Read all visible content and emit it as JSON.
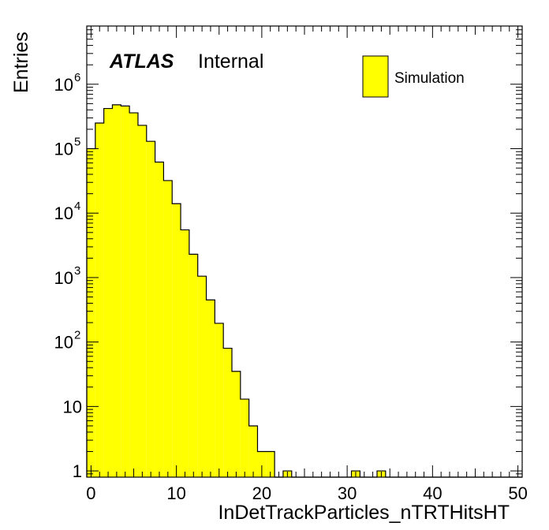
{
  "chart_data": {
    "type": "bar",
    "xlabel": "InDetTrackParticles_nTRTHitsHT",
    "ylabel": "Entries",
    "xlim": [
      -0.5,
      50.5
    ],
    "ylim": [
      0.8,
      8000000
    ],
    "yscale": "log",
    "grid": false,
    "legend_position": "top-right",
    "fill_color": "#ffff00",
    "line_color": "#000000",
    "atlas_label": "ATLAS",
    "atlas_status": "Internal",
    "x_tick_labels": [
      "0",
      "10",
      "20",
      "30",
      "40",
      "50"
    ],
    "x_ticks": [
      0,
      10,
      20,
      30,
      40,
      50
    ],
    "y_tick_labels": [
      {
        "base": "1",
        "exp": ""
      },
      {
        "base": "10",
        "exp": ""
      },
      {
        "base": "10",
        "exp": "2"
      },
      {
        "base": "10",
        "exp": "3"
      },
      {
        "base": "10",
        "exp": "4"
      },
      {
        "base": "10",
        "exp": "5"
      },
      {
        "base": "10",
        "exp": "6"
      }
    ],
    "y_ticks": [
      1,
      10,
      100,
      1000,
      10000,
      100000,
      1000000
    ],
    "series": [
      {
        "name": "Simulation",
        "bin_width": 1,
        "x": [
          0,
          1,
          2,
          3,
          4,
          5,
          6,
          7,
          8,
          9,
          10,
          11,
          12,
          13,
          14,
          15,
          16,
          17,
          18,
          19,
          20,
          21,
          22,
          23,
          24,
          25,
          26,
          27,
          28,
          29,
          30,
          31,
          32,
          33,
          34,
          35,
          36,
          37,
          38,
          39,
          40,
          41,
          42,
          43,
          44,
          45,
          46,
          47,
          48,
          49,
          50
        ],
        "values": [
          100000,
          250000,
          420000,
          480000,
          460000,
          360000,
          230000,
          130000,
          62000,
          32000,
          14000,
          5500,
          2300,
          1050,
          450,
          195,
          80,
          35,
          13,
          5,
          2,
          2,
          0,
          1,
          0,
          0,
          0,
          0,
          0,
          0,
          0,
          1,
          0,
          0,
          1,
          0,
          0,
          0,
          0,
          0,
          0,
          0,
          0,
          0,
          0,
          0,
          0,
          0,
          0,
          0,
          0
        ]
      }
    ]
  }
}
